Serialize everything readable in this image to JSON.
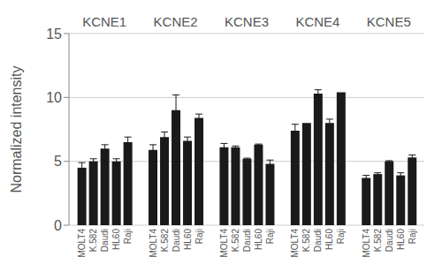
{
  "chart_data": {
    "type": "bar",
    "y_label": "Normalized intensity",
    "categories": [
      "KCNE1",
      "KCNE2",
      "KCNE3",
      "KCNE4",
      "KCNE5"
    ],
    "series": [
      {
        "name": "MOLT4",
        "color": "#1a1a1a",
        "values": [
          4.5,
          5.9,
          6.1,
          7.4,
          3.7
        ],
        "errors": [
          0.4,
          0.4,
          0.3,
          0.5,
          0.2
        ]
      },
      {
        "name": "K.582",
        "color": "#1a1a1a",
        "values": [
          5.0,
          6.9,
          6.1,
          8.0,
          4.0
        ],
        "errors": [
          0.2,
          0.4,
          0.1,
          0.0,
          0.1
        ]
      },
      {
        "name": "Daudi",
        "color": "#1a1a1a",
        "values": [
          6.0,
          9.0,
          5.2,
          10.3,
          5.0
        ],
        "errors": [
          0.3,
          1.2,
          0.05,
          0.3,
          0.05
        ]
      },
      {
        "name": "HL60",
        "color": "#1a1a1a",
        "values": [
          5.0,
          6.6,
          6.3,
          8.0,
          3.9
        ],
        "errors": [
          0.2,
          0.3,
          0.05,
          0.3,
          0.2
        ]
      },
      {
        "name": "Raji",
        "color": "#1a1a1a",
        "values": [
          6.5,
          8.4,
          4.8,
          10.4,
          5.3
        ],
        "errors": [
          0.4,
          0.3,
          0.3,
          0.0,
          0.2
        ]
      }
    ],
    "ylim": [
      0,
      15
    ],
    "yticks": [
      0,
      5,
      10,
      15
    ],
    "grid": true
  }
}
